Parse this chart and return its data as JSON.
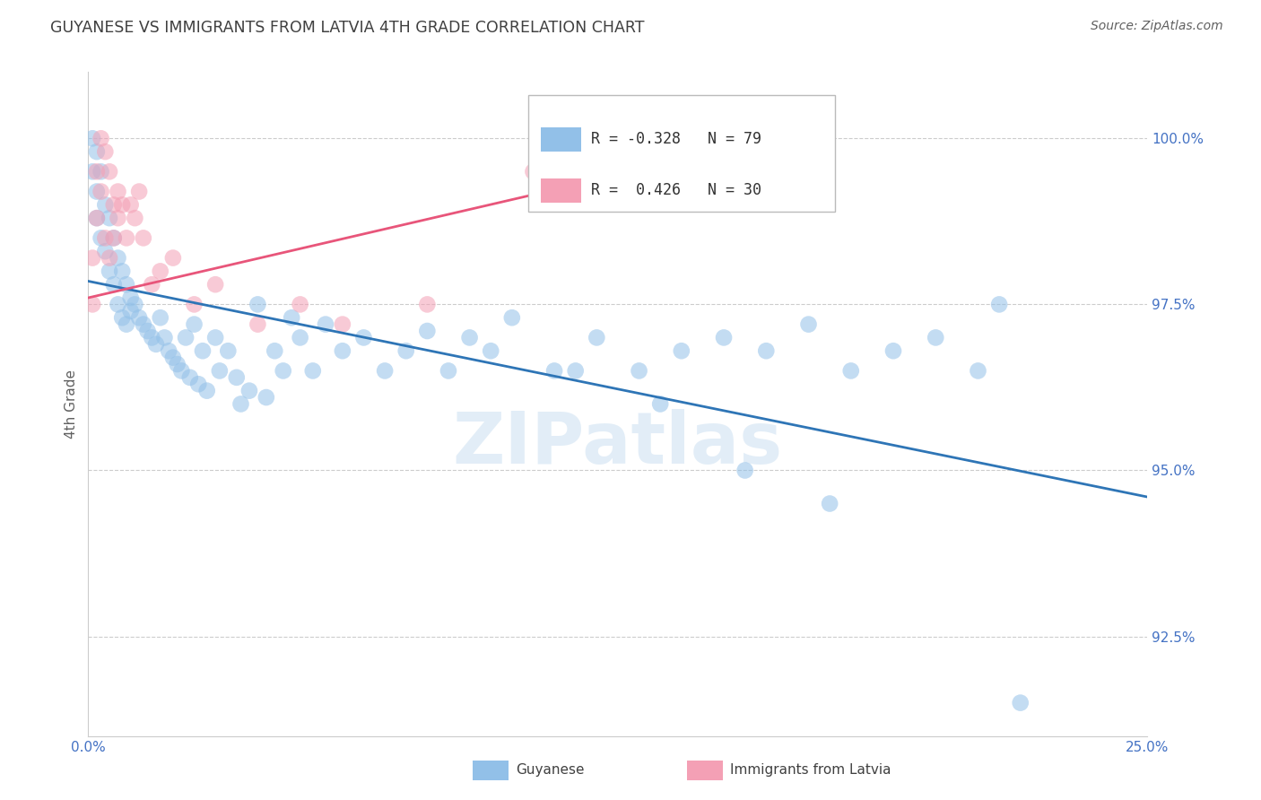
{
  "title": "GUYANESE VS IMMIGRANTS FROM LATVIA 4TH GRADE CORRELATION CHART",
  "source": "Source: ZipAtlas.com",
  "ylabel": "4th Grade",
  "xlim": [
    0.0,
    0.25
  ],
  "ylim": [
    91.0,
    101.0
  ],
  "watermark": "ZIPatlas",
  "legend_blue_r": "-0.328",
  "legend_blue_n": "79",
  "legend_pink_r": "0.426",
  "legend_pink_n": "30",
  "legend_label_blue": "Guyanese",
  "legend_label_pink": "Immigrants from Latvia",
  "blue_color": "#92C0E8",
  "pink_color": "#F4A0B5",
  "line_blue_color": "#2E75B6",
  "line_pink_color": "#E8557A",
  "blue_scatter_x": [
    0.001,
    0.001,
    0.002,
    0.002,
    0.002,
    0.003,
    0.003,
    0.004,
    0.004,
    0.005,
    0.005,
    0.006,
    0.006,
    0.007,
    0.007,
    0.008,
    0.008,
    0.009,
    0.009,
    0.01,
    0.01,
    0.011,
    0.012,
    0.013,
    0.014,
    0.015,
    0.016,
    0.017,
    0.018,
    0.019,
    0.02,
    0.021,
    0.022,
    0.023,
    0.024,
    0.025,
    0.026,
    0.027,
    0.028,
    0.03,
    0.031,
    0.033,
    0.035,
    0.036,
    0.038,
    0.04,
    0.042,
    0.044,
    0.046,
    0.048,
    0.05,
    0.053,
    0.056,
    0.06,
    0.065,
    0.07,
    0.075,
    0.08,
    0.085,
    0.09,
    0.095,
    0.1,
    0.11,
    0.12,
    0.13,
    0.14,
    0.15,
    0.16,
    0.17,
    0.18,
    0.19,
    0.2,
    0.21,
    0.215,
    0.22,
    0.175,
    0.155,
    0.135,
    0.115
  ],
  "blue_scatter_y": [
    100.0,
    99.5,
    99.8,
    99.2,
    98.8,
    99.5,
    98.5,
    99.0,
    98.3,
    98.8,
    98.0,
    98.5,
    97.8,
    98.2,
    97.5,
    98.0,
    97.3,
    97.8,
    97.2,
    97.6,
    97.4,
    97.5,
    97.3,
    97.2,
    97.1,
    97.0,
    96.9,
    97.3,
    97.0,
    96.8,
    96.7,
    96.6,
    96.5,
    97.0,
    96.4,
    97.2,
    96.3,
    96.8,
    96.2,
    97.0,
    96.5,
    96.8,
    96.4,
    96.0,
    96.2,
    97.5,
    96.1,
    96.8,
    96.5,
    97.3,
    97.0,
    96.5,
    97.2,
    96.8,
    97.0,
    96.5,
    96.8,
    97.1,
    96.5,
    97.0,
    96.8,
    97.3,
    96.5,
    97.0,
    96.5,
    96.8,
    97.0,
    96.8,
    97.2,
    96.5,
    96.8,
    97.0,
    96.5,
    97.5,
    91.5,
    94.5,
    95.0,
    96.0,
    96.5
  ],
  "pink_scatter_x": [
    0.001,
    0.001,
    0.002,
    0.002,
    0.003,
    0.003,
    0.004,
    0.004,
    0.005,
    0.005,
    0.006,
    0.006,
    0.007,
    0.007,
    0.008,
    0.009,
    0.01,
    0.011,
    0.012,
    0.013,
    0.015,
    0.017,
    0.02,
    0.025,
    0.03,
    0.04,
    0.05,
    0.06,
    0.08,
    0.105
  ],
  "pink_scatter_y": [
    97.5,
    98.2,
    99.5,
    98.8,
    100.0,
    99.2,
    99.8,
    98.5,
    99.5,
    98.2,
    99.0,
    98.5,
    99.2,
    98.8,
    99.0,
    98.5,
    99.0,
    98.8,
    99.2,
    98.5,
    97.8,
    98.0,
    98.2,
    97.5,
    97.8,
    97.2,
    97.5,
    97.2,
    97.5,
    99.5
  ],
  "blue_trendline_x": [
    0.0,
    0.25
  ],
  "blue_trendline_y": [
    97.85,
    94.6
  ],
  "pink_trendline_x": [
    0.0,
    0.115
  ],
  "pink_trendline_y": [
    97.6,
    99.3
  ],
  "yticks": [
    92.5,
    95.0,
    97.5,
    100.0
  ],
  "ytick_labels": [
    "92.5%",
    "95.0%",
    "97.5%",
    "100.0%"
  ],
  "xtick_pos": [
    0.0,
    0.05,
    0.1,
    0.15,
    0.2,
    0.25
  ],
  "xtick_labels": [
    "0.0%",
    "",
    "",
    "",
    "",
    "25.0%"
  ],
  "background_color": "#ffffff",
  "grid_color": "#cccccc",
  "tick_label_color": "#4472C4",
  "title_color": "#404040"
}
